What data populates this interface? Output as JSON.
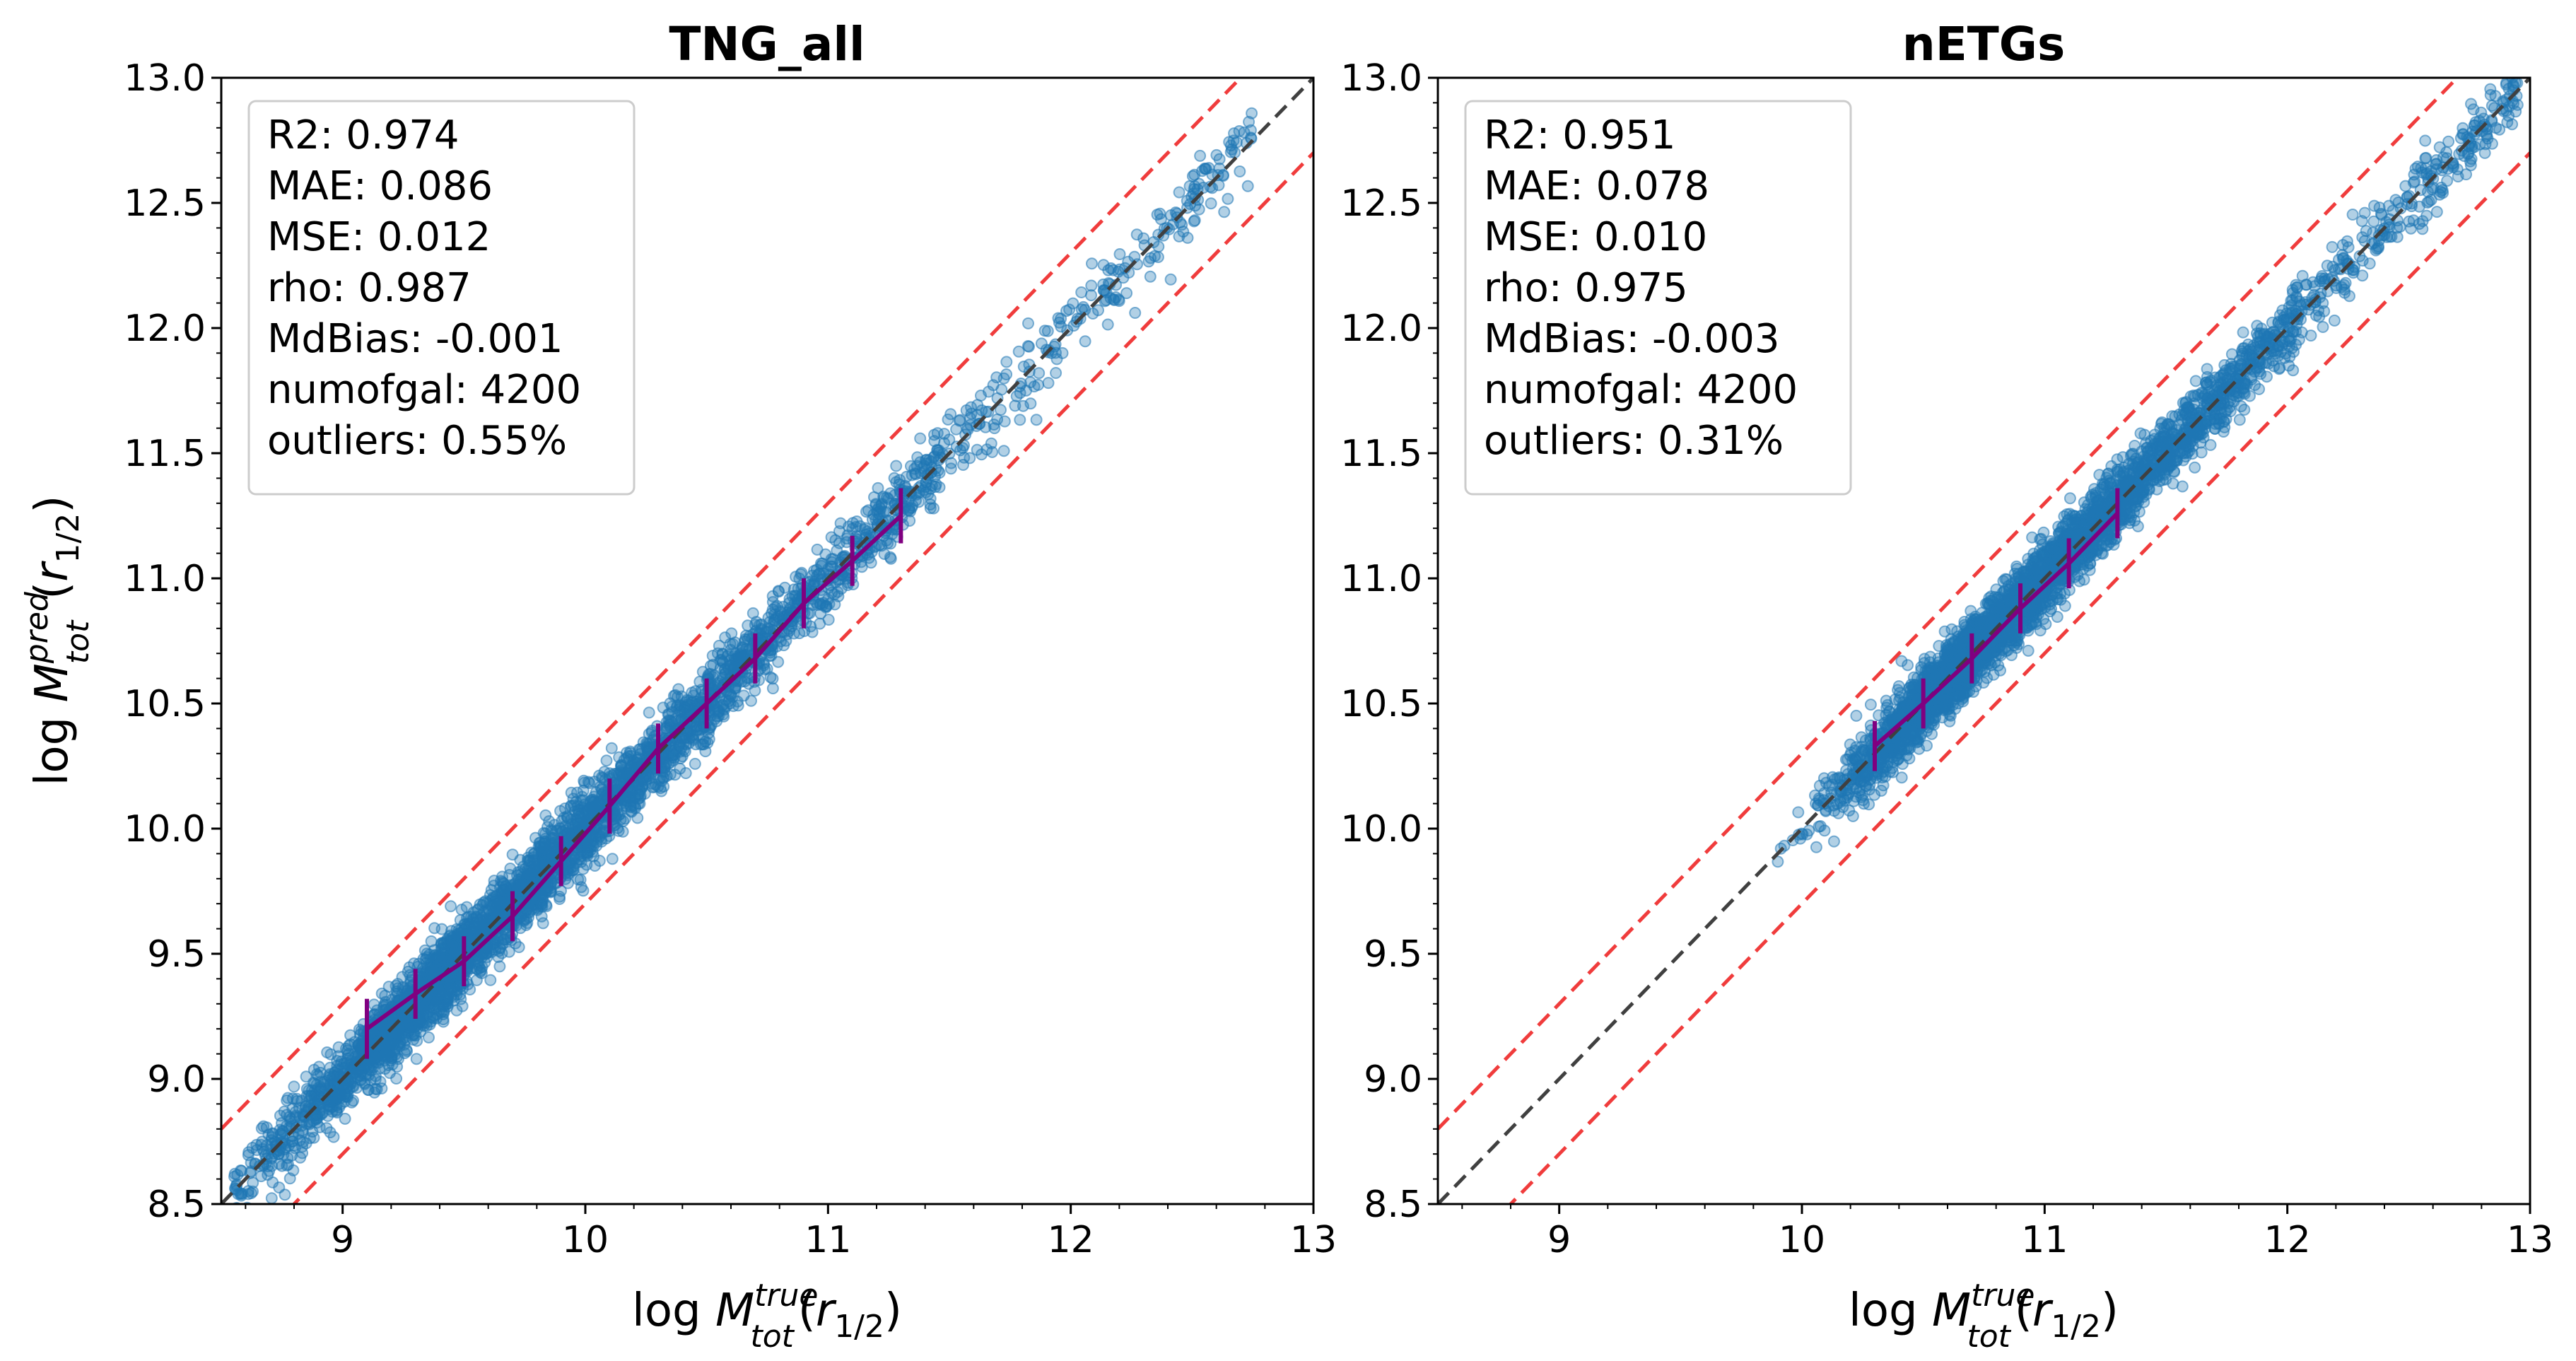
{
  "chart_data": [
    {
      "type": "scatter",
      "title": "TNG_all",
      "xlabel": "log M_tot^true(r_1/2)",
      "ylabel": "log M_tot^pred(r_1/2)",
      "xlim": [
        8.5,
        13.0
      ],
      "ylim": [
        8.5,
        13.0
      ],
      "xticks": [
        9,
        10,
        11,
        12,
        13
      ],
      "yticks": [
        8.5,
        9.0,
        9.5,
        10.0,
        10.5,
        11.0,
        11.5,
        12.0,
        12.5,
        13.0
      ],
      "x_tick_labels": [
        "9",
        "10",
        "11",
        "12",
        "13"
      ],
      "y_tick_labels": [
        "8.5",
        "9.0",
        "9.5",
        "10.0",
        "10.5",
        "11.0",
        "11.5",
        "12.0",
        "12.5",
        "13.0"
      ],
      "stats": {
        "r2": "R2:  0.974",
        "mae": "MAE:  0.086",
        "mse": "MSE:  0.012",
        "rho": "rho:  0.987",
        "mdbias": "MdBias: -0.001",
        "numofgal": "numofgal: 4200",
        "outliers": "outliers: 0.55%"
      },
      "scatter_range": [
        8.55,
        12.75
      ],
      "scatter_sigma": 0.07,
      "scatter_density_center": 9.5,
      "one_to_one_line": [
        [
          8.5,
          8.5
        ],
        [
          13.0,
          13.0
        ]
      ],
      "outlier_bounds_offset": 0.3,
      "median_trend": {
        "x": [
          9.1,
          9.3,
          9.5,
          9.7,
          9.9,
          10.1,
          10.3,
          10.5,
          10.7,
          10.9,
          11.1,
          11.3
        ],
        "y": [
          9.2,
          9.34,
          9.47,
          9.65,
          9.87,
          10.09,
          10.32,
          10.5,
          10.68,
          10.9,
          11.07,
          11.25
        ],
        "yerr": [
          0.12,
          0.1,
          0.1,
          0.1,
          0.1,
          0.11,
          0.1,
          0.1,
          0.1,
          0.1,
          0.1,
          0.11
        ]
      },
      "colors": {
        "points": "#1f77b4",
        "trend": "#800080",
        "bounds": "#f03c3c",
        "identity": "#404040"
      }
    },
    {
      "type": "scatter",
      "title": "nETGs",
      "xlabel": "log M_tot^true(r_1/2)",
      "ylabel": "",
      "xlim": [
        8.5,
        13.0
      ],
      "ylim": [
        8.5,
        13.0
      ],
      "xticks": [
        9,
        10,
        11,
        12,
        13
      ],
      "yticks": [
        8.5,
        9.0,
        9.5,
        10.0,
        10.5,
        11.0,
        11.5,
        12.0,
        12.5,
        13.0
      ],
      "x_tick_labels": [
        "9",
        "10",
        "11",
        "12",
        "13"
      ],
      "y_tick_labels": [
        "8.5",
        "9.0",
        "9.5",
        "10.0",
        "10.5",
        "11.0",
        "11.5",
        "12.0",
        "12.5",
        "13.0"
      ],
      "stats": {
        "r2": "R2:  0.951",
        "mae": "MAE:  0.078",
        "mse": "MSE:  0.010",
        "rho": "rho:  0.975",
        "mdbias": "MdBias: -0.003",
        "numofgal": "numofgal: 4200",
        "outliers": "outliers: 0.31%"
      },
      "scatter_range": [
        9.9,
        12.95
      ],
      "scatter_sigma": 0.065,
      "scatter_density_center": 10.7,
      "one_to_one_line": [
        [
          8.5,
          8.5
        ],
        [
          13.0,
          13.0
        ]
      ],
      "outlier_bounds_offset": 0.3,
      "median_trend": {
        "x": [
          10.3,
          10.5,
          10.7,
          10.9,
          11.1,
          11.3
        ],
        "y": [
          10.33,
          10.5,
          10.68,
          10.88,
          11.06,
          11.26
        ],
        "yerr": [
          0.1,
          0.1,
          0.1,
          0.1,
          0.1,
          0.1
        ]
      },
      "colors": {
        "points": "#1f77b4",
        "trend": "#800080",
        "bounds": "#f03c3c",
        "identity": "#404040"
      }
    }
  ]
}
